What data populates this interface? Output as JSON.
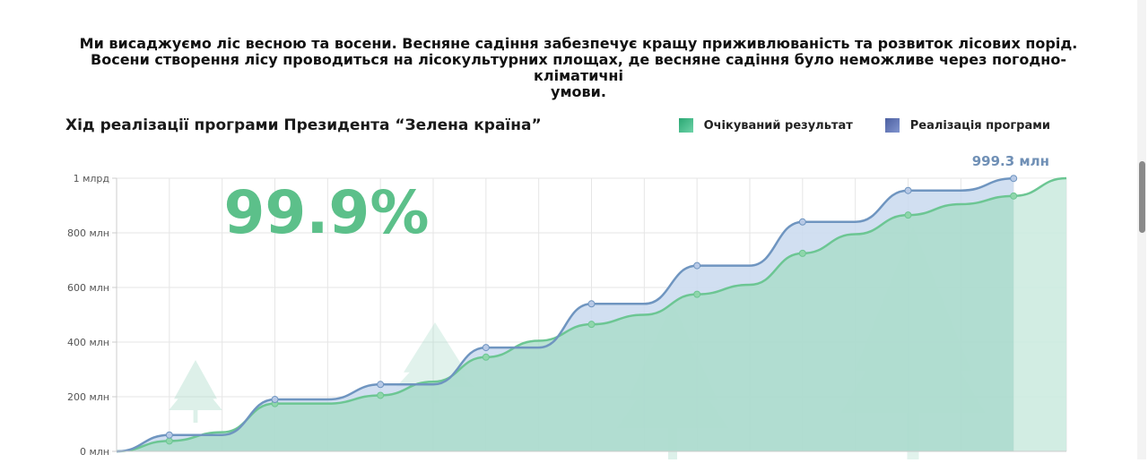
{
  "intro": {
    "line1": "Ми висаджуємо ліс весною та восени. Весняне садіння забезпечує кращу приживлюваність та розвиток лісових порід.",
    "line2": "Восени створення лісу проводиться на лісокультурних площах, де весняне садіння було неможливе через погодно-кліматичні",
    "line3": "умови."
  },
  "colors": {
    "expected_line": "#6cc693",
    "expected_fill": "#a8dcc8",
    "actual_line": "#6f95c0",
    "actual_fill": "#c9d9ee",
    "big_percent": "#5cc08a",
    "value_label": "#7090b6"
  },
  "chart_data": {
    "type": "area",
    "title": "Хід реалізації програми Президента “Зелена країна”",
    "big_percent": "99.9%",
    "end_label": "999.3 млн",
    "legend_placement": "top-right",
    "grid": true,
    "yticks": [
      "0 млн",
      "200 млн",
      "400 млн",
      "600 млн",
      "800 млн",
      "1 млрд"
    ],
    "ylim": [
      0,
      1000
    ],
    "x_count": 18,
    "series": [
      {
        "name": "Очікуваний результат",
        "values": [
          0,
          38,
          70,
          175,
          175,
          205,
          255,
          345,
          405,
          465,
          500,
          575,
          610,
          725,
          795,
          865,
          905,
          935,
          1000
        ],
        "x": [
          0,
          1,
          2,
          3,
          4,
          5,
          6,
          7,
          8,
          9,
          10,
          11,
          12,
          13,
          14,
          15,
          16,
          17,
          18
        ]
      },
      {
        "name": "Реалізація програми",
        "values": [
          0,
          60,
          60,
          190,
          190,
          245,
          245,
          380,
          380,
          540,
          540,
          680,
          680,
          840,
          840,
          955,
          955,
          999.3
        ],
        "x": [
          0,
          1,
          2,
          3,
          4,
          5,
          6,
          7,
          8,
          9,
          10,
          11,
          12,
          13,
          14,
          15,
          16,
          17
        ]
      }
    ]
  }
}
